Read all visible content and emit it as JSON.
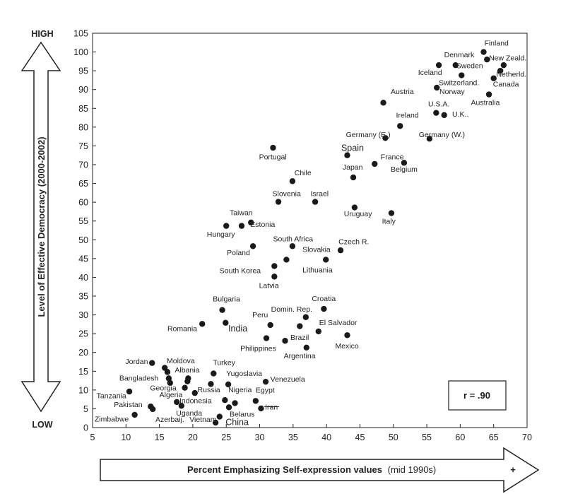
{
  "chart_data": {
    "type": "scatter",
    "xlabel": "Percent Emphasizing Self-expression values",
    "xlabel_suffix": "(mid 1990s)",
    "ylabel": "Level of Effective Democracy (2000-2002)",
    "y_high_label": "HIGH",
    "y_low_label": "LOW",
    "x_plus_label": "+",
    "correlation_label": "r = .90",
    "xlim": [
      5,
      70
    ],
    "ylim": [
      0,
      105
    ],
    "x_ticks": [
      5,
      10,
      15,
      20,
      25,
      30,
      35,
      40,
      45,
      50,
      55,
      60,
      65,
      70
    ],
    "y_ticks": [
      0,
      5,
      10,
      15,
      20,
      25,
      30,
      35,
      40,
      45,
      50,
      55,
      60,
      65,
      70,
      75,
      80,
      85,
      90,
      95,
      100,
      105
    ],
    "grid": false,
    "points": [
      {
        "label": "Finland",
        "x": 63.5,
        "y": 100
      },
      {
        "label": "New Zeald.",
        "x": 64,
        "y": 98
      },
      {
        "label": "Denmark",
        "x": 59.3,
        "y": 96.5
      },
      {
        "label": "Iceland",
        "x": 56.8,
        "y": 96.5
      },
      {
        "label": "Sweden",
        "x": 66.5,
        "y": 96.5
      },
      {
        "label": "Switzerland.",
        "x": 60.2,
        "y": 93.8
      },
      {
        "label": "Netherld.",
        "x": 66,
        "y": 95
      },
      {
        "label": "Canada",
        "x": 65,
        "y": 93
      },
      {
        "label": "Norway",
        "x": 56.5,
        "y": 90.5
      },
      {
        "label": "Australia",
        "x": 64.3,
        "y": 88.7
      },
      {
        "label": "Austria",
        "x": 48.5,
        "y": 86.5
      },
      {
        "label": "U.S.A.",
        "x": 56.4,
        "y": 83.8
      },
      {
        "label": "U.K..",
        "x": 57.6,
        "y": 83.2
      },
      {
        "label": "Ireland",
        "x": 51,
        "y": 80.3
      },
      {
        "label": "Germany (E.)",
        "x": 48.8,
        "y": 77.1
      },
      {
        "label": "Germany (W.)",
        "x": 55.4,
        "y": 76.9
      },
      {
        "label": "Portugal",
        "x": 32,
        "y": 74.5
      },
      {
        "label": "Spain",
        "x": 43.1,
        "y": 72.5
      },
      {
        "label": "France",
        "x": 47.2,
        "y": 70.2
      },
      {
        "label": "Belgium",
        "x": 51.6,
        "y": 70.5
      },
      {
        "label": "Japan",
        "x": 44,
        "y": 66.6
      },
      {
        "label": "Chile",
        "x": 34.9,
        "y": 65.6
      },
      {
        "label": "Slovenia",
        "x": 32.8,
        "y": 60.1
      },
      {
        "label": "Israel",
        "x": 38.3,
        "y": 60.1
      },
      {
        "label": "Uruguay",
        "x": 44.2,
        "y": 58.6
      },
      {
        "label": "Italy",
        "x": 49.7,
        "y": 57.1
      },
      {
        "label": "Taiwan",
        "x": 28.7,
        "y": 54.6
      },
      {
        "label": "Hungary",
        "x": 25,
        "y": 53.7
      },
      {
        "label": "Estonia",
        "x": 27.3,
        "y": 53.7
      },
      {
        "label": "South Africa",
        "x": 34.9,
        "y": 48.3
      },
      {
        "label": "Poland",
        "x": 29,
        "y": 48.3
      },
      {
        "label": "Czech R.",
        "x": 42.1,
        "y": 47.2
      },
      {
        "label": "Slovakia",
        "x": 34,
        "y": 44.7
      },
      {
        "label": "Lithuania",
        "x": 39.9,
        "y": 44.7
      },
      {
        "label": "South Korea",
        "x": 32.2,
        "y": 43
      },
      {
        "label": "Latvia",
        "x": 32.2,
        "y": 40.2
      },
      {
        "label": "Bulgaria",
        "x": 24.4,
        "y": 31.3
      },
      {
        "label": "Croatia",
        "x": 39.6,
        "y": 31.6
      },
      {
        "label": "Domin. Rep.",
        "x": 36.9,
        "y": 29.4
      },
      {
        "label": "Romania",
        "x": 21.4,
        "y": 27.6
      },
      {
        "label": "India",
        "x": 24.9,
        "y": 27.9
      },
      {
        "label": "Peru",
        "x": 31.6,
        "y": 27.3
      },
      {
        "label": "El Salvador",
        "x": 36,
        "y": 27
      },
      {
        "label": "Brazil",
        "x": 38.8,
        "y": 25.6
      },
      {
        "label": "Mexico",
        "x": 43.1,
        "y": 24.6
      },
      {
        "label": "Philippines",
        "x": 31,
        "y": 23.8
      },
      {
        "label": "Argentina",
        "x": 33.8,
        "y": 23.1
      },
      {
        "label": "Argentina (2)",
        "x": 37,
        "y": 21.3
      },
      {
        "label": "Jordan",
        "x": 13.9,
        "y": 17.2
      },
      {
        "label": "Moldova",
        "x": 15.8,
        "y": 15.9
      },
      {
        "label": "Albania",
        "x": 16.2,
        "y": 14.8
      },
      {
        "label": "Turkey",
        "x": 23.1,
        "y": 14.4
      },
      {
        "label": "Bangladesh",
        "x": 16.4,
        "y": 13.1
      },
      {
        "label": "Bangladesh (2)",
        "x": 19.3,
        "y": 13.1
      },
      {
        "label": "Bangladesh (3)",
        "x": 16.6,
        "y": 11.9
      },
      {
        "label": "Yugoslavia",
        "x": 25.3,
        "y": 11.5
      },
      {
        "label": "Venezuela",
        "x": 30.9,
        "y": 12.2
      },
      {
        "label": "Georgia",
        "x": 19.2,
        "y": 12.3
      },
      {
        "label": "Georgia (2)",
        "x": 22.7,
        "y": 11.6
      },
      {
        "label": "Algeria",
        "x": 18.8,
        "y": 10.6
      },
      {
        "label": "Russia",
        "x": 20.3,
        "y": 9.2
      },
      {
        "label": "Tanzania",
        "x": 10.5,
        "y": 9.6
      },
      {
        "label": "Nigeria",
        "x": 24.8,
        "y": 7.3
      },
      {
        "label": "Egypt",
        "x": 29.4,
        "y": 7.1
      },
      {
        "label": "Indonesia",
        "x": 17.6,
        "y": 6.8
      },
      {
        "label": "Indonesia (2)",
        "x": 26.3,
        "y": 6.5
      },
      {
        "label": "Pakistan",
        "x": 13.7,
        "y": 5.6
      },
      {
        "label": "Pakistan (2)",
        "x": 14,
        "y": 4.9
      },
      {
        "label": "Uganda",
        "x": 18.3,
        "y": 5.8
      },
      {
        "label": "Iran",
        "x": 30.2,
        "y": 5.1
      },
      {
        "label": "Belarus",
        "x": 25.4,
        "y": 5.4
      },
      {
        "label": "Zimbabwe",
        "x": 11.3,
        "y": 3.4
      },
      {
        "label": "Azerbaij.",
        "x": 24,
        "y": 2.9
      },
      {
        "label": "Vietnam",
        "x": 23.4,
        "y": 1.3
      }
    ],
    "labels": [
      {
        "text": "Finland",
        "x": 63.6,
        "y": 101.7
      },
      {
        "text": "New Zeald.",
        "x": 64.3,
        "y": 97.8
      },
      {
        "text": "Denmark",
        "x": 57.6,
        "y": 98.6
      },
      {
        "text": "Sweden",
        "x": 59.4,
        "y": 95.7
      },
      {
        "text": "Iceland",
        "x": 53.7,
        "y": 93.9
      },
      {
        "text": "Netherld.",
        "x": 65.4,
        "y": 93.4
      },
      {
        "text": "Switzerland.",
        "x": 56.8,
        "y": 91.2
      },
      {
        "text": "Canada",
        "x": 64.9,
        "y": 90.8
      },
      {
        "text": "Austria",
        "x": 49.6,
        "y": 88.8
      },
      {
        "text": "Norway",
        "x": 56.9,
        "y": 88.8
      },
      {
        "text": "Australia",
        "x": 61.6,
        "y": 85.9
      },
      {
        "text": "U.S.A.",
        "x": 55.2,
        "y": 85.5
      },
      {
        "text": "U.K..",
        "x": 58.8,
        "y": 82.8
      },
      {
        "text": "Ireland",
        "x": 50.4,
        "y": 82.5
      },
      {
        "text": "Germany (E.)",
        "x": 42.9,
        "y": 77.3
      },
      {
        "text": "Germany (W.)",
        "x": 53.8,
        "y": 77.3
      },
      {
        "text": "Spain",
        "x": 42.2,
        "y": 73.7
      },
      {
        "text": "Portugal",
        "x": 29.9,
        "y": 71.4
      },
      {
        "text": "France",
        "x": 48.1,
        "y": 71.4
      },
      {
        "text": "Japan",
        "x": 42.4,
        "y": 68.7
      },
      {
        "text": "Belgium",
        "x": 49.6,
        "y": 68.1
      },
      {
        "text": "Chile",
        "x": 35.2,
        "y": 67.2
      },
      {
        "text": "Slovenia",
        "x": 31.9,
        "y": 61.6
      },
      {
        "text": "Israel",
        "x": 37.6,
        "y": 61.6
      },
      {
        "text": "Uruguay",
        "x": 42.6,
        "y": 56.3
      },
      {
        "text": "Taiwan",
        "x": 25.5,
        "y": 56.5
      },
      {
        "text": "Italy",
        "x": 48.3,
        "y": 54.3
      },
      {
        "text": "Estonia",
        "x": 28.6,
        "y": 53.4
      },
      {
        "text": "Hungary",
        "x": 22.1,
        "y": 50.8
      },
      {
        "text": "South Africa",
        "x": 32,
        "y": 49.6
      },
      {
        "text": "Czech R.",
        "x": 41.8,
        "y": 48.8
      },
      {
        "text": "Slovakia",
        "x": 36.4,
        "y": 46.8
      },
      {
        "text": "Poland",
        "x": 25.1,
        "y": 45.9
      },
      {
        "text": "South Korea",
        "x": 24,
        "y": 41.1
      },
      {
        "text": "Lithuania",
        "x": 36.4,
        "y": 41.3
      },
      {
        "text": "Latvia",
        "x": 29.9,
        "y": 37.2
      },
      {
        "text": "Bulgaria",
        "x": 23,
        "y": 33.6
      },
      {
        "text": "Croatia",
        "x": 37.8,
        "y": 33.7
      },
      {
        "text": "Domin. Rep.",
        "x": 31.7,
        "y": 30.9
      },
      {
        "text": "Peru",
        "x": 28.9,
        "y": 29.4
      },
      {
        "text": "El Salvador",
        "x": 38.9,
        "y": 27.3
      },
      {
        "text": "Romania",
        "x": 16.2,
        "y": 25.7
      },
      {
        "text": "India",
        "x": 25.3,
        "y": 25.6
      },
      {
        "text": "Brazil",
        "x": 34.6,
        "y": 23.3
      },
      {
        "text": "Mexico",
        "x": 41.3,
        "y": 21.1
      },
      {
        "text": "Philippines",
        "x": 27.1,
        "y": 20.4
      },
      {
        "text": "Argentina",
        "x": 33.6,
        "y": 18.4
      },
      {
        "text": "Jordan",
        "x": 9.9,
        "y": 16.9
      },
      {
        "text": "Moldova",
        "x": 16.1,
        "y": 17.1
      },
      {
        "text": "Turkey",
        "x": 23,
        "y": 16.7
      },
      {
        "text": "Albania",
        "x": 17.3,
        "y": 14.7
      },
      {
        "text": "Yugoslavia",
        "x": 25,
        "y": 13.7
      },
      {
        "text": "Bangladesh",
        "x": 9,
        "y": 12.5
      },
      {
        "text": "Venezuela",
        "x": 31.6,
        "y": 12.2
      },
      {
        "text": "Georgia",
        "x": 13.6,
        "y": 9.9
      },
      {
        "text": "Russia",
        "x": 20.7,
        "y": 9.4
      },
      {
        "text": "Nigeria",
        "x": 25.3,
        "y": 9.4
      },
      {
        "text": "Egypt",
        "x": 29.4,
        "y": 9.3
      },
      {
        "text": "Algeria",
        "x": 15,
        "y": 8.1
      },
      {
        "text": "Tanzania",
        "x": 5.6,
        "y": 7.8
      },
      {
        "text": "Indonesia",
        "x": 18,
        "y": 6.5
      },
      {
        "text": "Pakistan",
        "x": 8.2,
        "y": 5.5
      },
      {
        "text": "Iran",
        "x": 30.8,
        "y": 4.8
      },
      {
        "text": "Uganda",
        "x": 17.5,
        "y": 3.2
      },
      {
        "text": "Belarus",
        "x": 25.5,
        "y": 2.9
      },
      {
        "text": "Zimbabwe",
        "x": 5.3,
        "y": 1.6
      },
      {
        "text": "Azerbaij.",
        "x": 14.4,
        "y": 1.5
      },
      {
        "text": "Vietnam",
        "x": 19.5,
        "y": 1.5
      },
      {
        "text": "China",
        "x": 24.9,
        "y": 0.7
      }
    ],
    "large_labels": [
      "Spain",
      "India",
      "China"
    ],
    "struck_labels": [
      "Iran"
    ]
  }
}
